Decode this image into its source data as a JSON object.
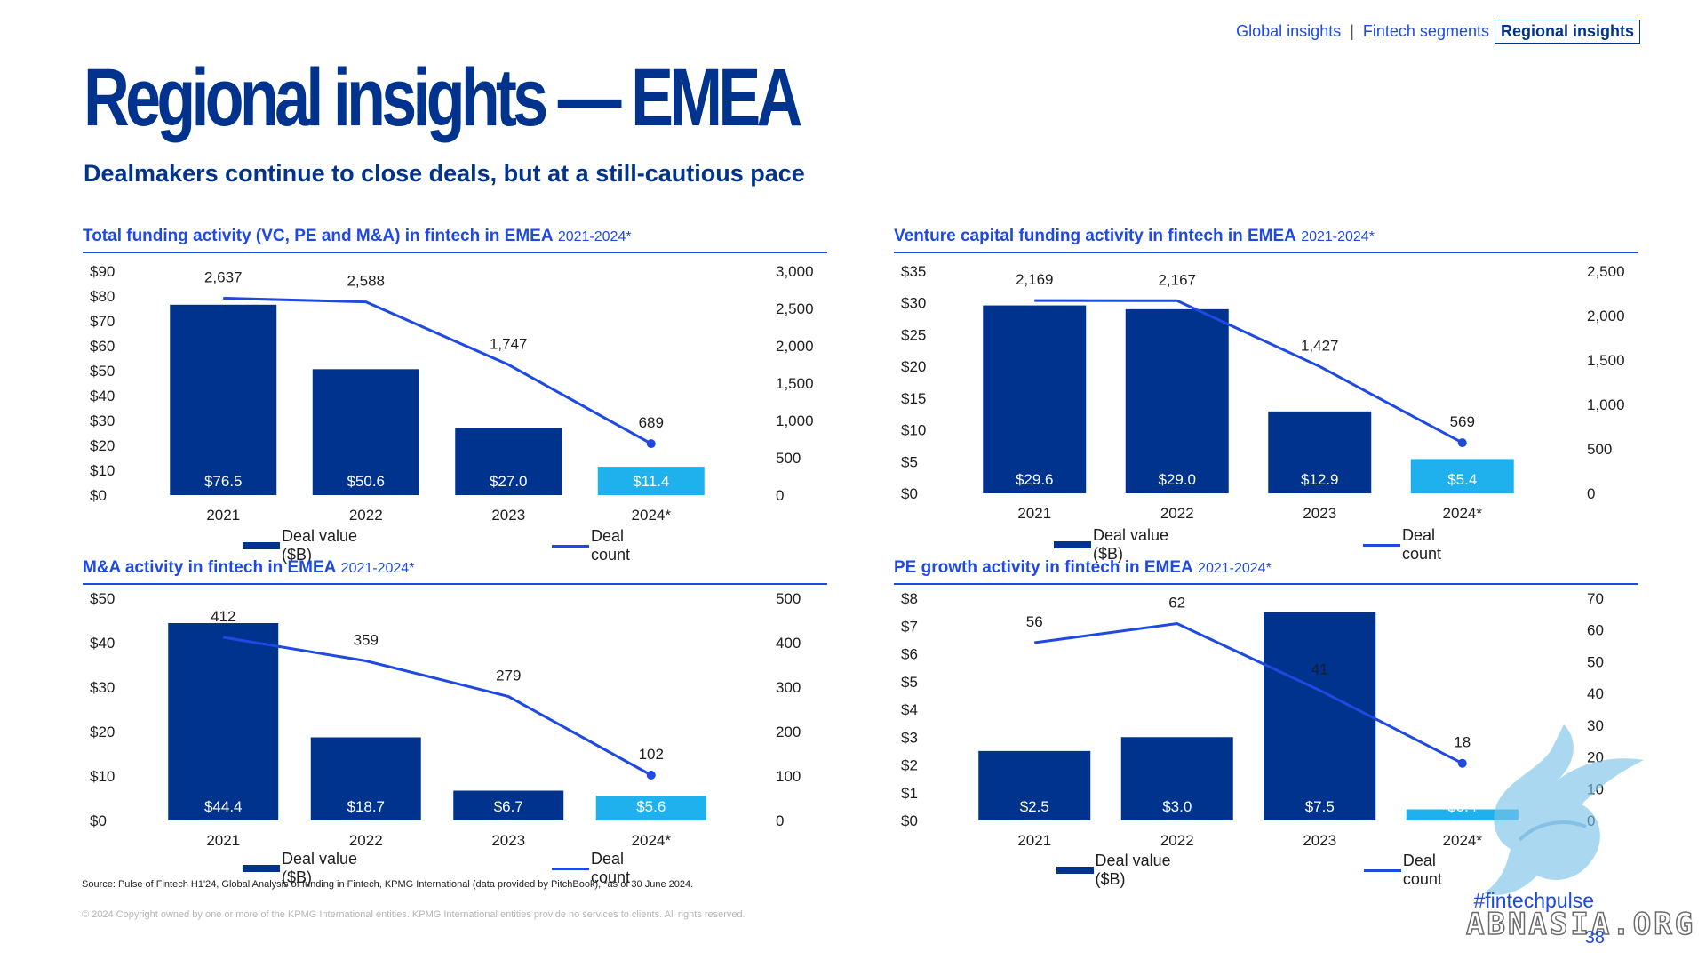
{
  "nav": {
    "items": [
      "Global insights",
      "Fintech segments",
      "Regional insights"
    ],
    "separator": "|",
    "active": "Regional insights"
  },
  "header": {
    "title": "Regional insights — EMEA",
    "subtitle": "Dealmakers continue to close deals, but at a still-cautious pace"
  },
  "colors": {
    "brand": "#00338d",
    "accent": "#1e49e2",
    "highlight": "#1fb1ee"
  },
  "legend_labels": {
    "bars": "Deal value ($B)",
    "line": "Deal count"
  },
  "chart_data": [
    {
      "type": "bar",
      "title": "Total funding activity (VC, PE and M&A) in fintech in EMEA",
      "period": "2021-2024*",
      "categories": [
        "2021",
        "2022",
        "2023",
        "2024*"
      ],
      "series": [
        {
          "name": "Deal value ($B)",
          "type": "bar",
          "axis": "left",
          "values": [
            76.5,
            50.6,
            27.0,
            11.4
          ],
          "labels": [
            "$76.5",
            "$50.6",
            "$27.0",
            "$11.4"
          ]
        },
        {
          "name": "Deal count",
          "type": "line",
          "axis": "right",
          "values": [
            2637,
            2588,
            1747,
            689
          ],
          "labels": [
            "2,637",
            "2,588",
            "1,747",
            "689"
          ]
        }
      ],
      "left_axis": {
        "ticks": [
          "$0",
          "$10",
          "$20",
          "$30",
          "$40",
          "$50",
          "$60",
          "$70",
          "$80",
          "$90"
        ],
        "ylim": [
          0,
          90
        ]
      },
      "right_axis": {
        "ticks": [
          "0",
          "500",
          "1,000",
          "1,500",
          "2,000",
          "2,500",
          "3,000"
        ],
        "ylim": [
          0,
          3000
        ]
      },
      "highlight_last": true,
      "legend": "bottom"
    },
    {
      "type": "bar",
      "title": "Venture capital funding activity in fintech in EMEA",
      "period": "2021-2024*",
      "categories": [
        "2021",
        "2022",
        "2023",
        "2024*"
      ],
      "series": [
        {
          "name": "Deal value ($B)",
          "type": "bar",
          "axis": "left",
          "values": [
            29.6,
            29.0,
            12.9,
            5.4
          ],
          "labels": [
            "$29.6",
            "$29.0",
            "$12.9",
            "$5.4"
          ]
        },
        {
          "name": "Deal count",
          "type": "line",
          "axis": "right",
          "values": [
            2169,
            2167,
            1427,
            569
          ],
          "labels": [
            "2,169",
            "2,167",
            "1,427",
            "569"
          ]
        }
      ],
      "left_axis": {
        "ticks": [
          "$0",
          "$5",
          "$10",
          "$15",
          "$20",
          "$25",
          "$30",
          "$35"
        ],
        "ylim": [
          0,
          35
        ]
      },
      "right_axis": {
        "ticks": [
          "0",
          "500",
          "1,000",
          "1,500",
          "2,000",
          "2,500"
        ],
        "ylim": [
          0,
          2500
        ]
      },
      "highlight_last": true,
      "legend": "bottom"
    },
    {
      "type": "bar",
      "title": "M&A activity in fintech in EMEA",
      "period": "2021-2024*",
      "categories": [
        "2021",
        "2022",
        "2023",
        "2024*"
      ],
      "series": [
        {
          "name": "Deal value ($B)",
          "type": "bar",
          "axis": "left",
          "values": [
            44.4,
            18.7,
            6.7,
            5.6
          ],
          "labels": [
            "$44.4",
            "$18.7",
            "$6.7",
            "$5.6"
          ]
        },
        {
          "name": "Deal count",
          "type": "line",
          "axis": "right",
          "values": [
            412,
            359,
            279,
            102
          ],
          "labels": [
            "412",
            "359",
            "279",
            "102"
          ]
        }
      ],
      "left_axis": {
        "ticks": [
          "$0",
          "$10",
          "$20",
          "$30",
          "$40",
          "$50"
        ],
        "ylim": [
          0,
          50
        ]
      },
      "right_axis": {
        "ticks": [
          "0",
          "100",
          "200",
          "300",
          "400",
          "500"
        ],
        "ylim": [
          0,
          500
        ]
      },
      "highlight_last": true,
      "legend": "bottom"
    },
    {
      "type": "bar",
      "title": "PE growth activity in fintech in EMEA",
      "period": "2021-2024*",
      "categories": [
        "2021",
        "2022",
        "2023",
        "2024*"
      ],
      "series": [
        {
          "name": "Deal value ($B)",
          "type": "bar",
          "axis": "left",
          "values": [
            2.5,
            3.0,
            7.5,
            0.4
          ],
          "labels": [
            "$2.5",
            "$3.0",
            "$7.5",
            "$0.4"
          ]
        },
        {
          "name": "Deal count",
          "type": "line",
          "axis": "right",
          "values": [
            56,
            62,
            41,
            18
          ],
          "labels": [
            "56",
            "62",
            "41",
            "18"
          ]
        }
      ],
      "left_axis": {
        "ticks": [
          "$0",
          "$1",
          "$2",
          "$3",
          "$4",
          "$5",
          "$6",
          "$7",
          "$8"
        ],
        "ylim": [
          0,
          8
        ]
      },
      "right_axis": {
        "ticks": [
          "0",
          "10",
          "20",
          "30",
          "40",
          "50",
          "60",
          "70"
        ],
        "ylim": [
          0,
          70
        ]
      },
      "highlight_last": true,
      "legend": "bottom"
    }
  ],
  "footer": {
    "source": "Source: Pulse of Fintech H1'24, Global Analysis of funding in Fintech, KPMG International (data provided by PitchBook), *as of 30 June 2024.",
    "copyright": "© 2024 Copyright owned by one or more of the KPMG International entities. KPMG International entities provide no services to clients. All rights reserved.",
    "hashtag": "#fintechpulse",
    "page_number": "38",
    "watermark_text": "ABNASIA.ORG"
  }
}
